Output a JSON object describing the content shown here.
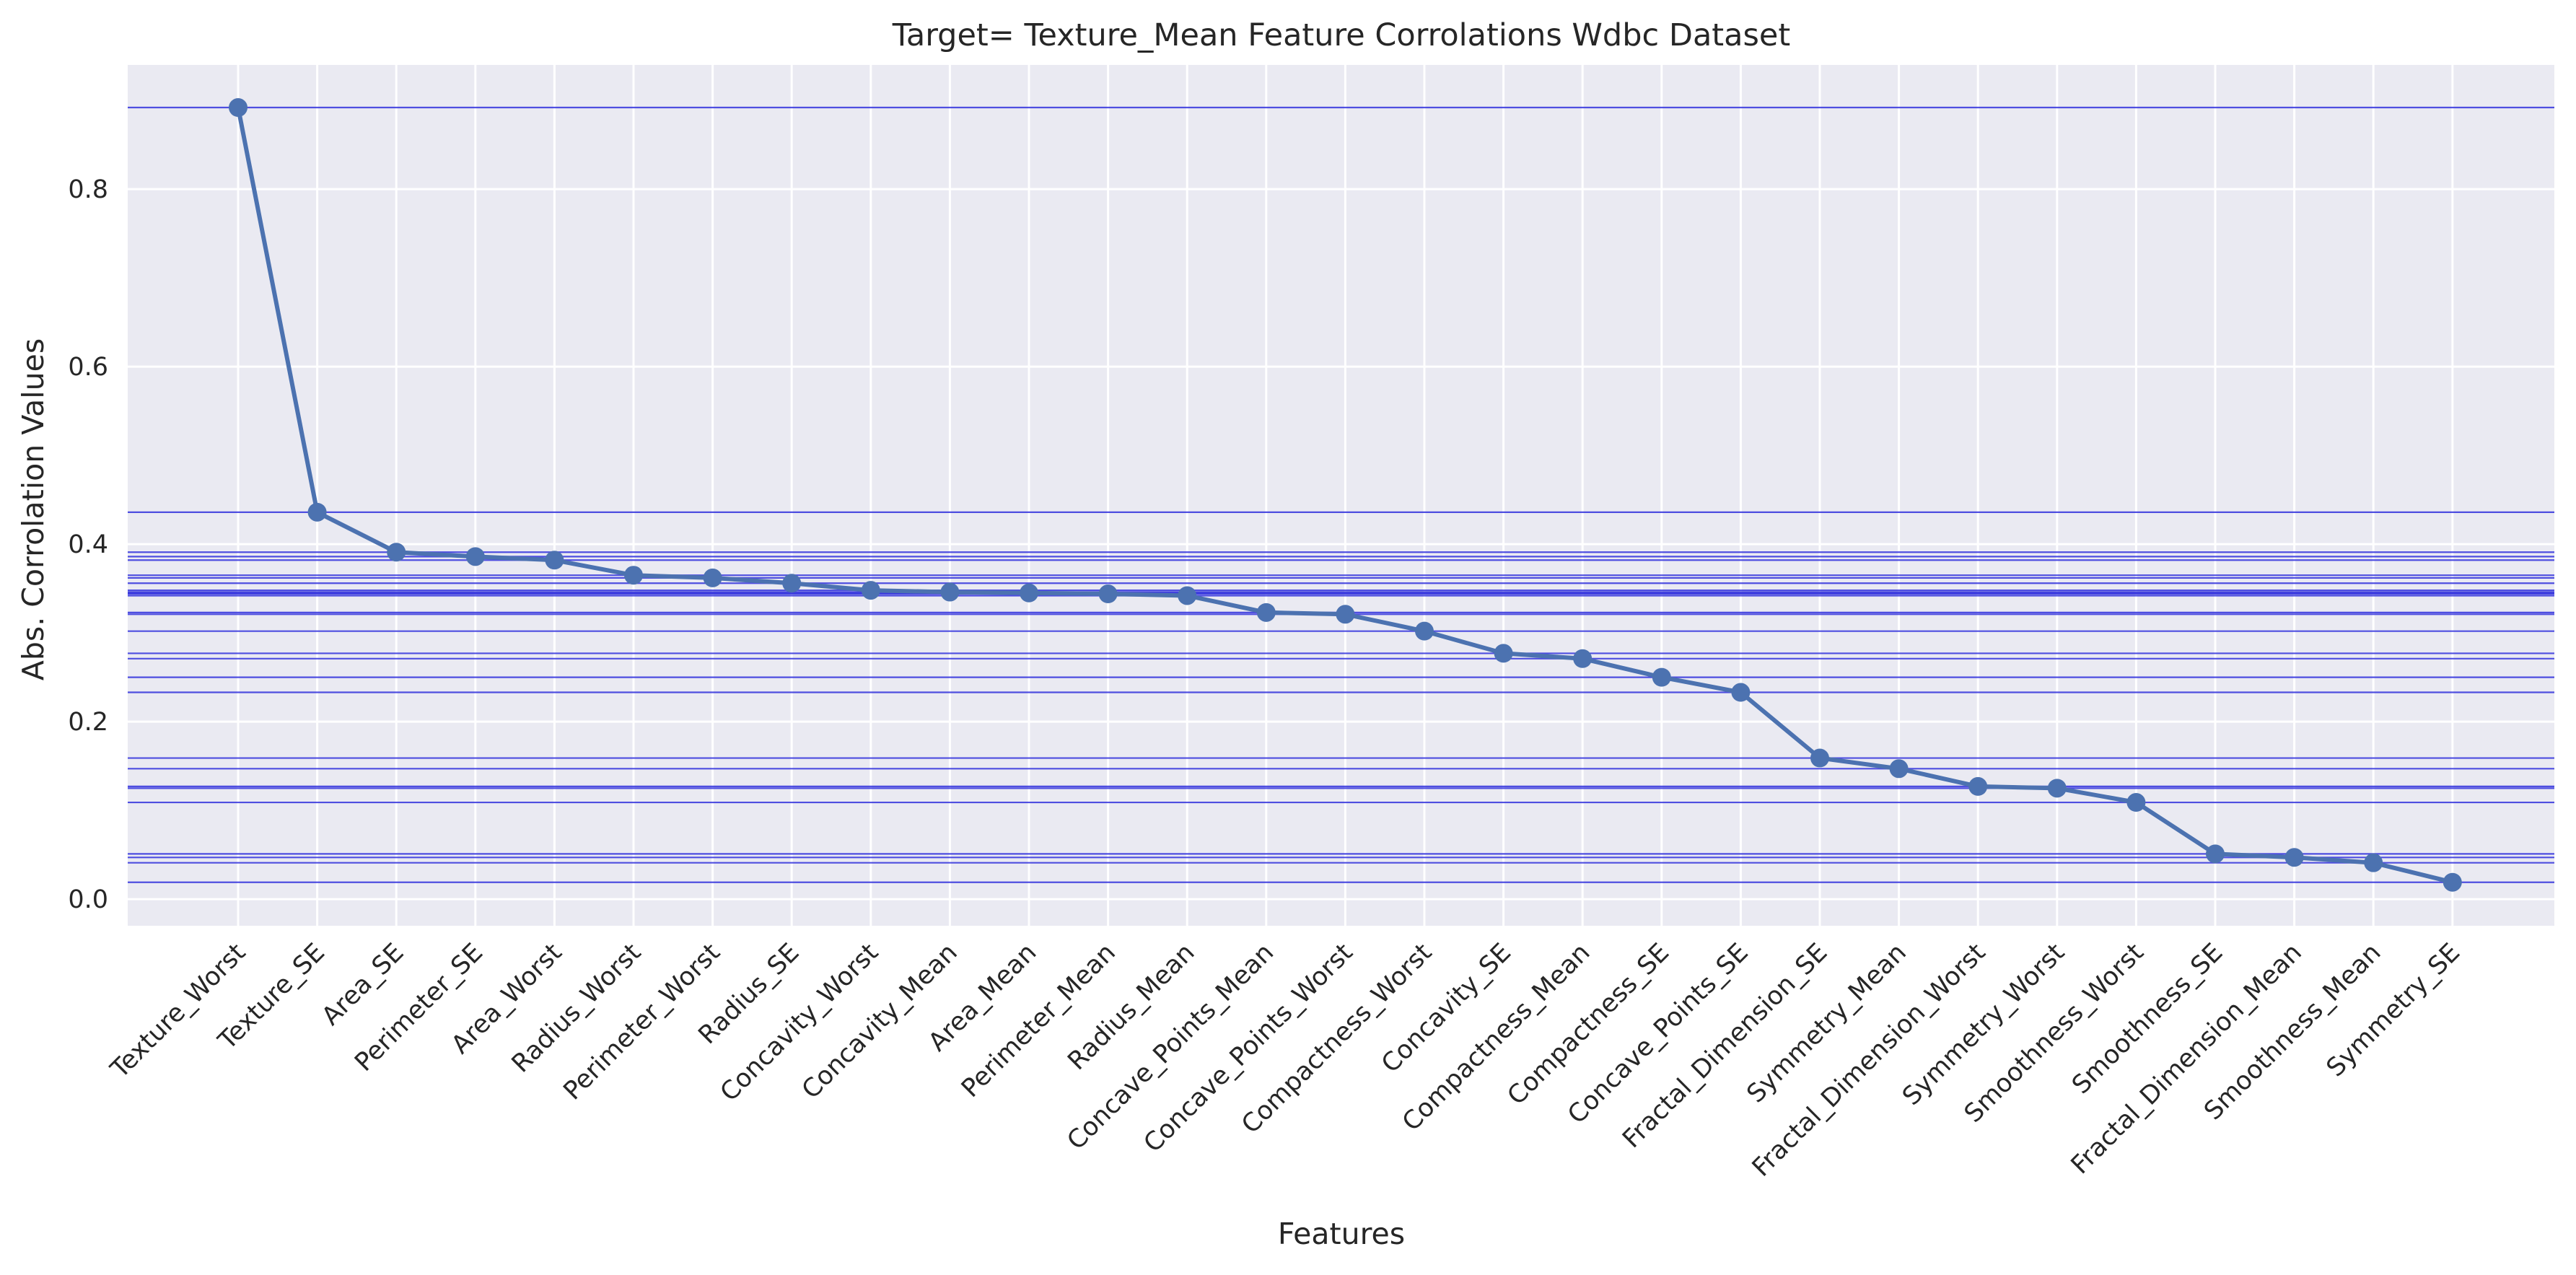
{
  "chart_data": {
    "type": "line",
    "title": "Target= Texture_Mean Feature Corrolations Wdbc Dataset",
    "xlabel": "Features",
    "ylabel": "Abs. Corrolation Values",
    "ylim": [
      -0.03,
      0.94
    ],
    "yticks": [
      "0.0",
      "0.2",
      "0.4",
      "0.6",
      "0.8"
    ],
    "ytick_values": [
      0.0,
      0.2,
      0.4,
      0.6,
      0.8
    ],
    "grid": true,
    "reference_lines": "horizontal line at each value",
    "colors": {
      "background": "#eaeaf2",
      "grid": "#ffffff",
      "line": "#4c72b0",
      "reference_line": "#3333dd"
    },
    "categories": [
      "Texture_Worst",
      "Texture_SE",
      "Area_SE",
      "Perimeter_SE",
      "Area_Worst",
      "Radius_Worst",
      "Perimeter_Worst",
      "Radius_SE",
      "Concavity_Worst",
      "Concavity_Mean",
      "Area_Mean",
      "Perimeter_Mean",
      "Radius_Mean",
      "Concave_Points_Mean",
      "Concave_Points_Worst",
      "Compactness_Worst",
      "Concavity_SE",
      "Compactness_Mean",
      "Compactness_SE",
      "Concave_Points_SE",
      "Fractal_Dimension_SE",
      "Symmetry_Mean",
      "Fractal_Dimension_Worst",
      "Symmetry_Worst",
      "Smoothness_Worst",
      "Smoothness_SE",
      "Fractal_Dimension_Mean",
      "Smoothness_Mean",
      "Symmetry_SE"
    ],
    "values": [
      0.892,
      0.436,
      0.391,
      0.386,
      0.382,
      0.365,
      0.362,
      0.356,
      0.348,
      0.346,
      0.345,
      0.344,
      0.342,
      0.323,
      0.321,
      0.302,
      0.277,
      0.271,
      0.25,
      0.233,
      0.159,
      0.147,
      0.127,
      0.125,
      0.109,
      0.051,
      0.047,
      0.041,
      0.019
    ]
  }
}
